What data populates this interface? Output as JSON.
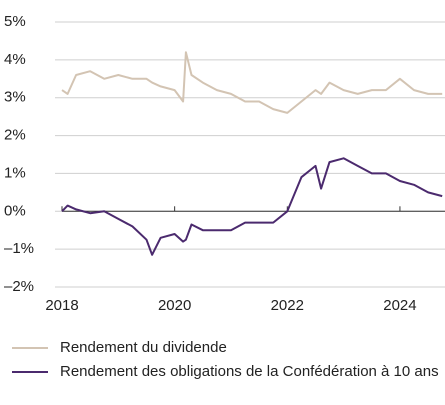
{
  "chart_data": {
    "type": "line",
    "x": [
      2018.0,
      2018.1,
      2018.25,
      2018.5,
      2018.75,
      2019.0,
      2019.25,
      2019.5,
      2019.6,
      2019.75,
      2020.0,
      2020.15,
      2020.2,
      2020.3,
      2020.5,
      2020.75,
      2021.0,
      2021.25,
      2021.5,
      2021.75,
      2022.0,
      2022.25,
      2022.5,
      2022.6,
      2022.75,
      2023.0,
      2023.25,
      2023.5,
      2023.75,
      2024.0,
      2024.25,
      2024.5,
      2024.75
    ],
    "series": [
      {
        "name": "Rendement du dividende",
        "color": "#d3c4b3",
        "values": [
          3.2,
          3.1,
          3.6,
          3.7,
          3.5,
          3.6,
          3.5,
          3.5,
          3.4,
          3.3,
          3.2,
          2.9,
          4.2,
          3.6,
          3.4,
          3.2,
          3.1,
          2.9,
          2.9,
          2.7,
          2.6,
          2.9,
          3.2,
          3.1,
          3.4,
          3.2,
          3.1,
          3.2,
          3.2,
          3.5,
          3.2,
          3.1,
          3.1
        ]
      },
      {
        "name": "Rendement des obligations de la Confédération à 10 ans",
        "color": "#4b2a6e",
        "values": [
          0.0,
          0.15,
          0.05,
          -0.05,
          0.0,
          -0.2,
          -0.4,
          -0.75,
          -1.15,
          -0.7,
          -0.6,
          -0.8,
          -0.75,
          -0.35,
          -0.5,
          -0.5,
          -0.5,
          -0.3,
          -0.3,
          -0.3,
          0.0,
          0.9,
          1.2,
          0.6,
          1.3,
          1.4,
          1.2,
          1.0,
          1.0,
          0.8,
          0.7,
          0.5,
          0.4
        ]
      }
    ],
    "xlim": [
      2018,
      2024.8
    ],
    "xticks": [
      2018,
      2020,
      2022,
      2024
    ],
    "ylim": [
      -2,
      5
    ],
    "yticks": [
      {
        "value": 5,
        "label": "5%"
      },
      {
        "value": 4,
        "label": "4%"
      },
      {
        "value": 3,
        "label": "3%"
      },
      {
        "value": 2,
        "label": "2%"
      },
      {
        "value": 1,
        "label": "1%"
      },
      {
        "value": 0,
        "label": "0%"
      },
      {
        "value": -1,
        "label": "–1%"
      },
      {
        "value": -2,
        "label": "–2%"
      }
    ],
    "grid": true
  }
}
